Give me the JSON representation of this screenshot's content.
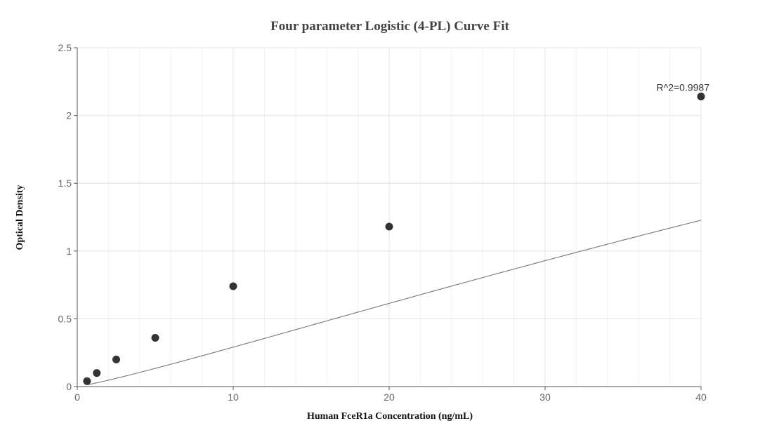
{
  "chart_data": {
    "type": "scatter",
    "title": "Four parameter Logistic (4-PL) Curve Fit",
    "xlabel": "Human FceR1a Concentration (ng/mL)",
    "ylabel": "Optical Density",
    "xlim": [
      0,
      40
    ],
    "ylim": [
      0,
      2.5
    ],
    "x_ticks": [
      0,
      10,
      20,
      30,
      40
    ],
    "y_ticks": [
      0,
      0.5,
      1,
      1.5,
      2,
      2.5
    ],
    "x_minor_step": 2,
    "grid": true,
    "legend": "none",
    "series": [
      {
        "kind": "points",
        "x": [
          0.625,
          1.25,
          2.5,
          5,
          10,
          20,
          40
        ],
        "y": [
          0.04,
          0.1,
          0.2,
          0.36,
          0.74,
          1.18,
          2.14
        ],
        "color": "#333333"
      },
      {
        "kind": "fit-curve",
        "model": "4PL",
        "params": {
          "A": 0.0,
          "B": 1.15,
          "C": 150,
          "D": 6.84
        },
        "color": "#777777"
      }
    ],
    "annotations": [
      {
        "text": "R^2=0.9987",
        "x": 40,
        "y": 2.14
      }
    ]
  }
}
